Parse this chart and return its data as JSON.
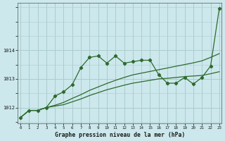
{
  "xlabel": "Graphe pression niveau de la mer (hPa)",
  "bg_color": "#cce8ec",
  "grid_color": "#aacccc",
  "line_color": "#2d6a2d",
  "hours": [
    0,
    1,
    2,
    3,
    4,
    5,
    6,
    7,
    8,
    9,
    10,
    11,
    12,
    13,
    14,
    15,
    16,
    17,
    18,
    19,
    20,
    21,
    22,
    23
  ],
  "main_line": [
    1011.65,
    1011.9,
    1011.9,
    1012.0,
    1012.4,
    1012.55,
    1012.8,
    1013.4,
    1013.75,
    1013.8,
    1013.55,
    1013.8,
    1013.55,
    1013.6,
    1013.65,
    1013.65,
    1013.15,
    1012.85,
    1012.85,
    1013.05,
    1012.82,
    1013.05,
    1013.45,
    1015.45
  ],
  "env_low": [
    1011.65,
    1011.9,
    1011.9,
    1012.0,
    1012.05,
    1012.1,
    1012.2,
    1012.3,
    1012.42,
    1012.52,
    1012.62,
    1012.7,
    1012.78,
    1012.85,
    1012.9,
    1012.95,
    1013.0,
    1013.02,
    1013.05,
    1013.08,
    1013.1,
    1013.12,
    1013.18,
    1013.25
  ],
  "env_high": [
    1011.65,
    1011.9,
    1011.9,
    1012.0,
    1012.08,
    1012.18,
    1012.32,
    1012.45,
    1012.6,
    1012.72,
    1012.84,
    1012.95,
    1013.05,
    1013.14,
    1013.2,
    1013.26,
    1013.32,
    1013.38,
    1013.44,
    1013.5,
    1013.56,
    1013.63,
    1013.75,
    1013.88
  ],
  "ylim_min": 1011.45,
  "ylim_max": 1015.65,
  "yticks": [
    1012,
    1013,
    1014
  ],
  "xticks": [
    0,
    1,
    2,
    3,
    4,
    5,
    6,
    7,
    8,
    9,
    10,
    11,
    12,
    13,
    14,
    15,
    16,
    17,
    18,
    19,
    20,
    21,
    22,
    23
  ]
}
